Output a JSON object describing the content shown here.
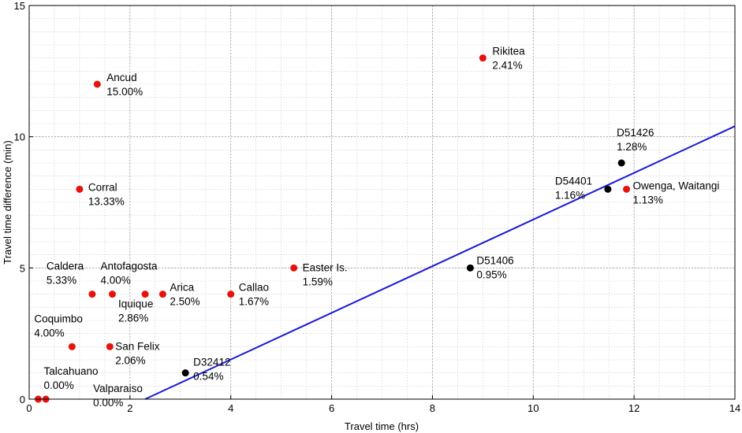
{
  "chart_data": {
    "type": "scatter",
    "xlabel": "Travel time (hrs)",
    "ylabel": "Travel time difference (min)",
    "xlim": [
      0,
      14
    ],
    "ylim": [
      0,
      15
    ],
    "x_ticks": [
      0,
      2,
      4,
      6,
      8,
      10,
      12,
      14
    ],
    "y_ticks": [
      0,
      5,
      10,
      15
    ],
    "grid": true,
    "colors": {
      "red_points": "#e8120c",
      "black_points": "#000000",
      "fit_line": "#1a1ad6"
    },
    "points": [
      {
        "label": "Talcahuano",
        "pct": "0.00%",
        "x": 0.18,
        "y": 0,
        "color": "red"
      },
      {
        "label": "Valparaiso",
        "pct": "0.00%",
        "x": 0.33,
        "y": 0,
        "color": "red"
      },
      {
        "label": "Coquimbo",
        "pct": "4.00%",
        "x": 0.85,
        "y": 2,
        "color": "red"
      },
      {
        "label": "Caldera",
        "pct": "5.33%",
        "x": 1.25,
        "y": 4,
        "color": "red"
      },
      {
        "label": "Corral",
        "pct": "13.33%",
        "x": 1.0,
        "y": 8,
        "color": "red"
      },
      {
        "label": "Ancud",
        "pct": "15.00%",
        "x": 1.35,
        "y": 12,
        "color": "red"
      },
      {
        "label": "San Felix",
        "pct": "2.06%",
        "x": 1.6,
        "y": 2,
        "color": "red"
      },
      {
        "label": "Antofagosta",
        "pct": "4.00%",
        "x": 1.65,
        "y": 4,
        "color": "red"
      },
      {
        "label": "Iquique",
        "pct": "2.86%",
        "x": 2.3,
        "y": 4,
        "color": "red"
      },
      {
        "label": "Arica",
        "pct": "2.50%",
        "x": 2.65,
        "y": 4,
        "color": "red"
      },
      {
        "label": "Callao",
        "pct": "1.67%",
        "x": 4.0,
        "y": 4,
        "color": "red"
      },
      {
        "label": "Easter Is.",
        "pct": "1.59%",
        "x": 5.25,
        "y": 5,
        "color": "red"
      },
      {
        "label": "Rikitea",
        "pct": "2.41%",
        "x": 9.0,
        "y": 13,
        "color": "red"
      },
      {
        "label": "Owenga, Waitangi",
        "pct": "1.13%",
        "x": 11.85,
        "y": 8,
        "color": "red"
      },
      {
        "label": "D32412",
        "pct": "0.54%",
        "x": 3.1,
        "y": 1,
        "color": "black"
      },
      {
        "label": "D51406",
        "pct": "0.95%",
        "x": 8.75,
        "y": 5,
        "color": "black"
      },
      {
        "label": "D54401",
        "pct": "1.16%",
        "x": 11.48,
        "y": 8,
        "color": "black"
      },
      {
        "label": "D51426",
        "pct": "1.28%",
        "x": 11.75,
        "y": 9,
        "color": "black"
      }
    ],
    "fit_line": {
      "x": [
        2.3,
        14
      ],
      "y": [
        0,
        10.4
      ]
    }
  }
}
